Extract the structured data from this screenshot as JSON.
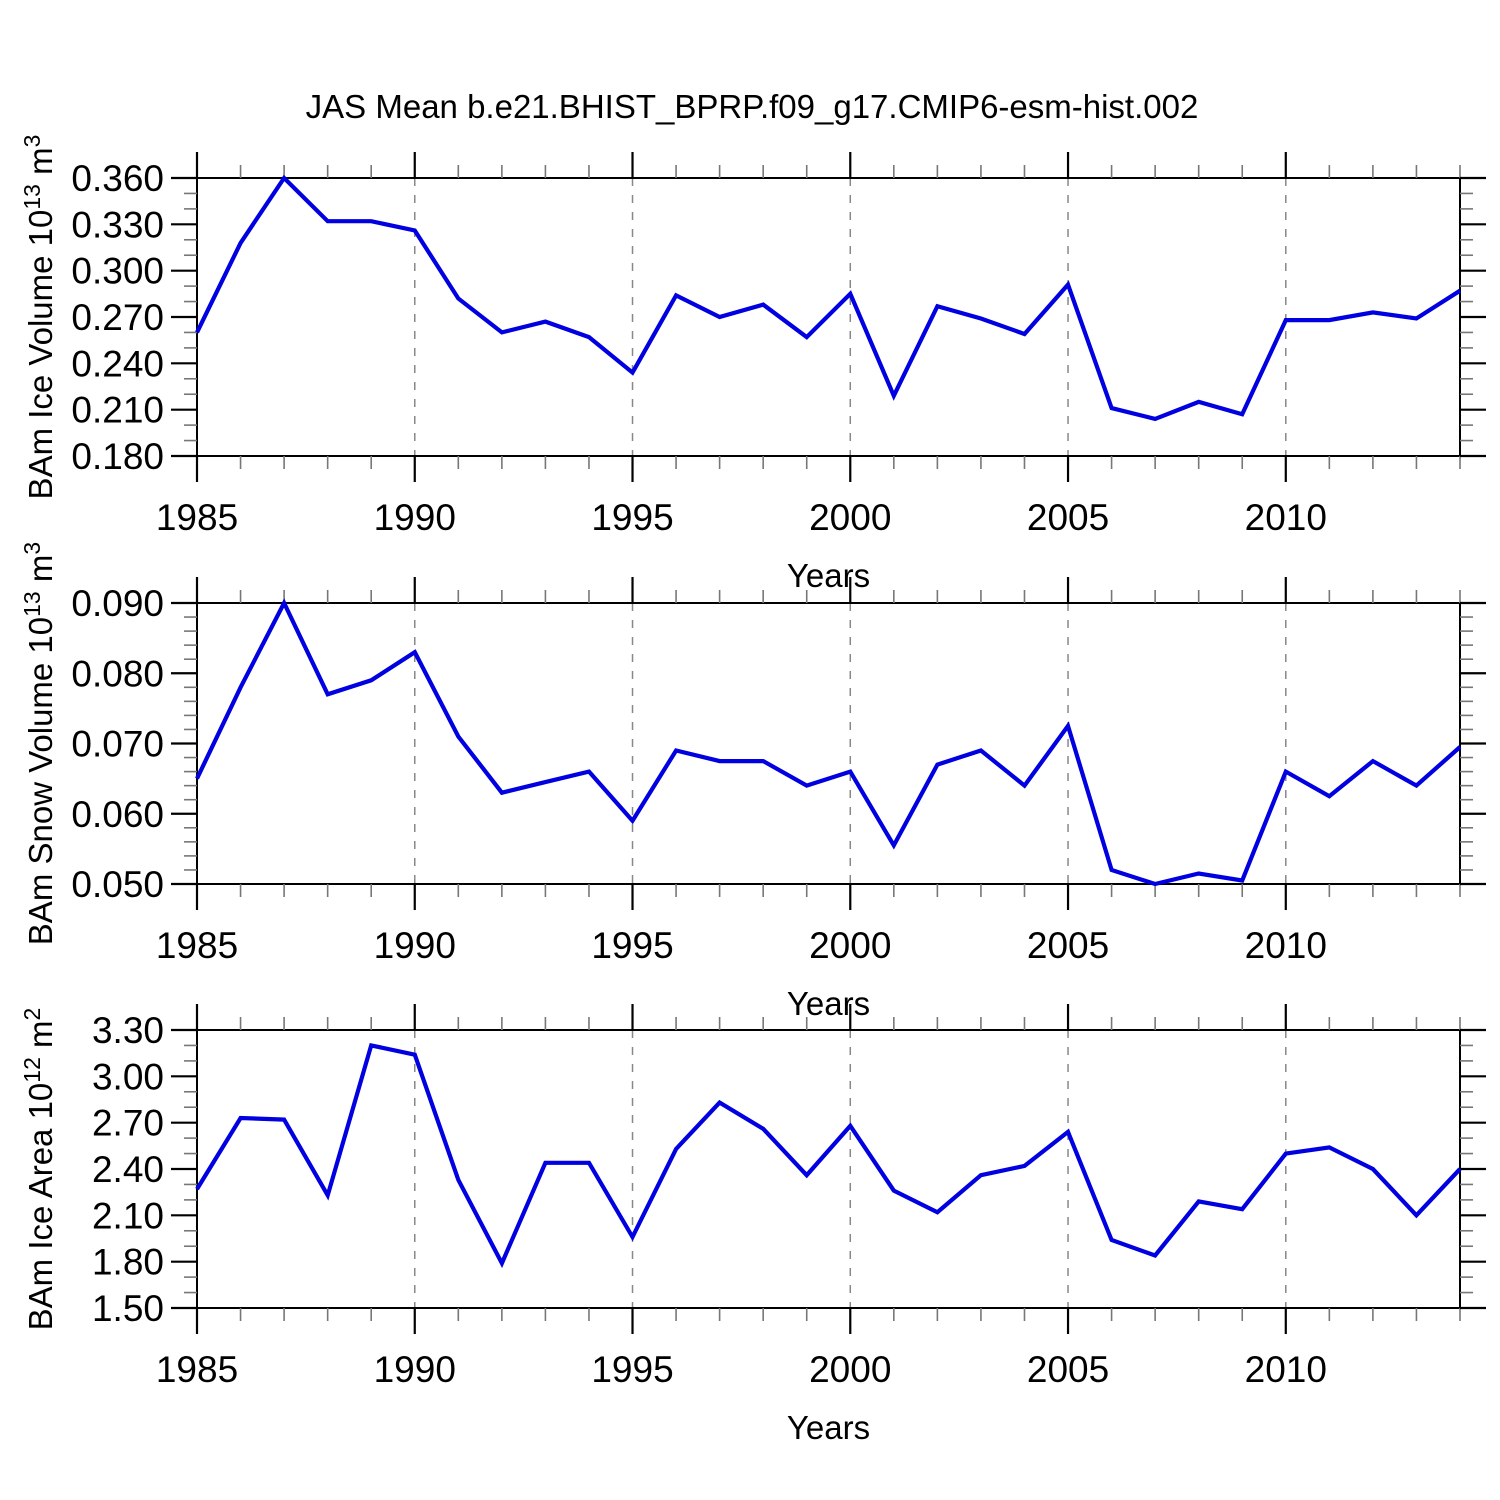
{
  "title": "JAS Mean b.e21.BHIST_BPRP.f09_g17.CMIP6-esm-hist.002",
  "colors": {
    "line": "#0000E0",
    "grid": "#888888",
    "frame": "#000000",
    "minor_tick": "#777777"
  },
  "chart_data": {
    "type": "line",
    "title": "JAS Mean b.e21.BHIST_BPRP.f09_g17.CMIP6-esm-hist.002",
    "x_label": "Years",
    "x": [
      1985,
      1986,
      1987,
      1988,
      1989,
      1990,
      1991,
      1992,
      1993,
      1994,
      1995,
      1996,
      1997,
      1998,
      1999,
      2000,
      2001,
      2002,
      2003,
      2004,
      2005,
      2006,
      2007,
      2008,
      2009,
      2010,
      2011,
      2012,
      2013,
      2014
    ],
    "x_range": [
      1985,
      2014
    ],
    "x_major_ticks": [
      1985,
      1990,
      1995,
      2000,
      2005,
      2010
    ],
    "x_tick_labels": [
      "1985",
      "1990",
      "1995",
      "2000",
      "2005",
      "2010"
    ],
    "x_minor_step": 1,
    "grid_years": [
      1990,
      1995,
      2000,
      2005,
      2010
    ],
    "grid_style": "dashed-vertical",
    "legend": "none",
    "panels": [
      {
        "name": "bam-ice-volume",
        "ylabel_plain": "BAm Ice Volume 10^13 m^3",
        "ylabel_parts": [
          {
            "text": "BAm Ice Volume 10"
          },
          {
            "text": "13",
            "sup": true
          },
          {
            "text": " m"
          },
          {
            "text": "3",
            "sup": true
          }
        ],
        "ylim": [
          0.18,
          0.36
        ],
        "y_major_values": [
          0.18,
          0.21,
          0.24,
          0.27,
          0.3,
          0.33,
          0.36
        ],
        "y_tick_labels": [
          "0.180",
          "0.210",
          "0.240",
          "0.270",
          "0.300",
          "0.330",
          "0.360"
        ],
        "y_minor_step": 0.01,
        "values": [
          0.26,
          0.318,
          0.36,
          0.332,
          0.332,
          0.326,
          0.282,
          0.26,
          0.267,
          0.257,
          0.234,
          0.284,
          0.27,
          0.278,
          0.257,
          0.285,
          0.219,
          0.277,
          0.269,
          0.259,
          0.291,
          0.211,
          0.204,
          0.215,
          0.207,
          0.268,
          0.268,
          0.273,
          0.269,
          0.287
        ]
      },
      {
        "name": "bam-snow-volume",
        "ylabel_plain": "BAm Snow Volume 10^13 m^3",
        "ylabel_parts": [
          {
            "text": "BAm Snow Volume 10"
          },
          {
            "text": "13",
            "sup": true
          },
          {
            "text": " m"
          },
          {
            "text": "3",
            "sup": true
          }
        ],
        "ylim": [
          0.05,
          0.09
        ],
        "y_major_values": [
          0.05,
          0.06,
          0.07,
          0.08,
          0.09
        ],
        "y_tick_labels": [
          "0.050",
          "0.060",
          "0.070",
          "0.080",
          "0.090"
        ],
        "y_minor_step": 0.002,
        "values": [
          0.065,
          0.078,
          0.09,
          0.077,
          0.079,
          0.083,
          0.071,
          0.063,
          0.0645,
          0.066,
          0.059,
          0.069,
          0.0675,
          0.0675,
          0.064,
          0.066,
          0.0555,
          0.067,
          0.069,
          0.064,
          0.0725,
          0.052,
          0.05,
          0.0515,
          0.0505,
          0.066,
          0.0625,
          0.0675,
          0.064,
          0.0695
        ]
      },
      {
        "name": "bam-ice-area",
        "ylabel_plain": "BAm Ice Area 10^12 m^2",
        "ylabel_parts": [
          {
            "text": "BAm Ice Area 10"
          },
          {
            "text": "12",
            "sup": true
          },
          {
            "text": " m"
          },
          {
            "text": "2",
            "sup": true
          }
        ],
        "ylim": [
          1.5,
          3.3
        ],
        "y_major_values": [
          1.5,
          1.8,
          2.1,
          2.4,
          2.7,
          3.0,
          3.3
        ],
        "y_tick_labels": [
          "1.50",
          "1.80",
          "2.10",
          "2.40",
          "2.70",
          "3.00",
          "3.30"
        ],
        "y_minor_step": 0.1,
        "values": [
          2.27,
          2.73,
          2.72,
          2.23,
          3.2,
          3.14,
          2.33,
          1.79,
          2.44,
          2.44,
          1.96,
          2.53,
          2.83,
          2.66,
          2.36,
          2.68,
          2.26,
          2.12,
          2.36,
          2.42,
          2.64,
          1.94,
          1.84,
          2.19,
          2.14,
          2.5,
          2.54,
          2.4,
          2.1,
          2.4
        ]
      }
    ]
  }
}
